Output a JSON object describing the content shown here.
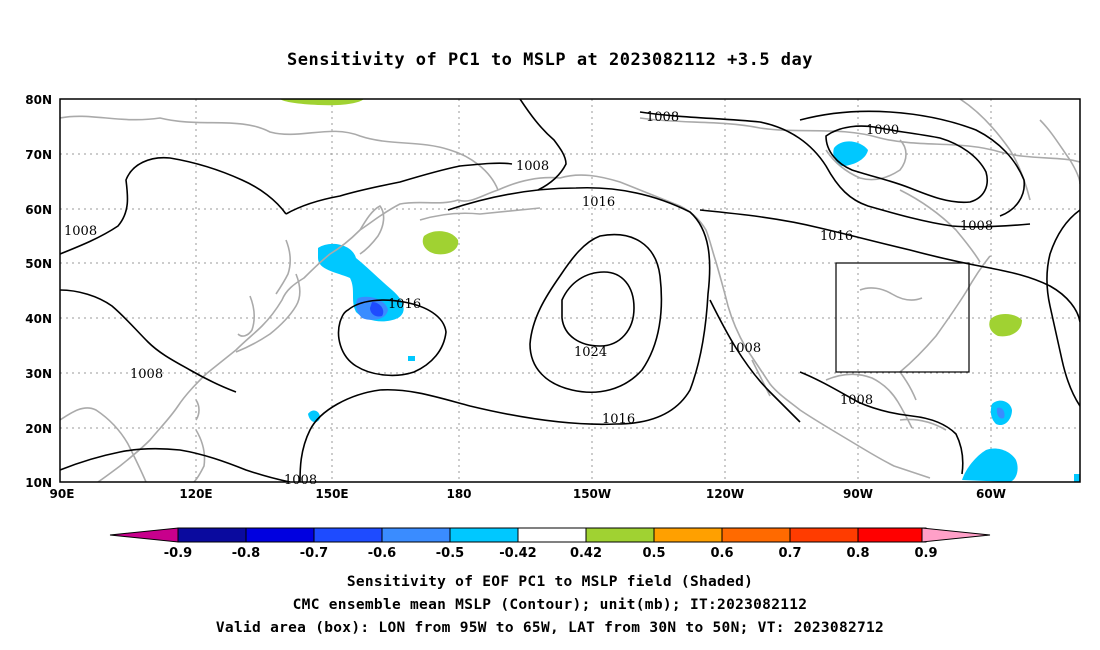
{
  "title": "Sensitivity of PC1 to MSLP at 2023082112 +3.5 day",
  "lat_labels": [
    "80N",
    "70N",
    "60N",
    "50N",
    "40N",
    "30N",
    "20N",
    "10N"
  ],
  "lon_labels": [
    "90E",
    "120E",
    "150E",
    "180",
    "150W",
    "120W",
    "90W",
    "60W"
  ],
  "contour_labels": [
    {
      "text": "1008"
    },
    {
      "text": "1008"
    },
    {
      "text": "1008"
    },
    {
      "text": "1008"
    },
    {
      "text": "1008"
    },
    {
      "text": "1008"
    },
    {
      "text": "1008"
    },
    {
      "text": "1008"
    },
    {
      "text": "1016"
    },
    {
      "text": "1016"
    },
    {
      "text": "1016"
    },
    {
      "text": "1016"
    },
    {
      "text": "1024"
    },
    {
      "text": "1000"
    }
  ],
  "colorbar": {
    "labels": [
      "-0.9",
      "-0.8",
      "-0.7",
      "-0.6",
      "-0.5",
      "-0.42",
      "0.42",
      "0.5",
      "0.6",
      "0.7",
      "0.8",
      "0.9"
    ],
    "colors": [
      "#0a0a9e",
      "#0000e0",
      "#1e4bff",
      "#3a8cff",
      "#00c8ff",
      "#ffffff",
      "#a0d232",
      "#ffa000",
      "#ff6a00",
      "#ff3c00",
      "#ff0000"
    ],
    "left_arrow_color": "#c8008c",
    "right_arrow_color": "#ffa0c8"
  },
  "captions": {
    "line1": "Sensitivity of EOF PC1 to MSLP field (Shaded)",
    "line2": "CMC ensemble mean MSLP (Contour); unit(mb); IT:2023082112",
    "line3": "Valid area (box): LON from 95W to 65W, LAT from 30N to 50N; VT: 2023082712"
  }
}
